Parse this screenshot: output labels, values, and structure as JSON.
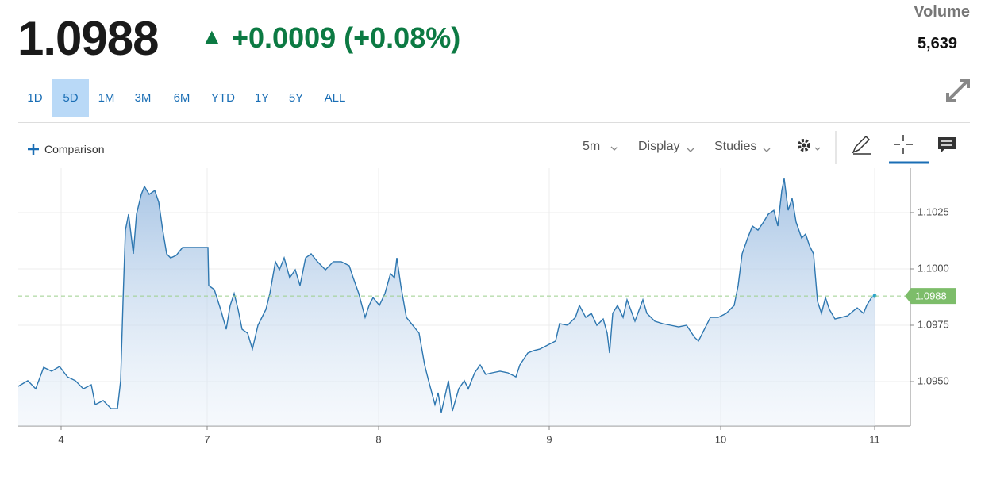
{
  "header": {
    "price": "1.0988",
    "change": "+0.0009 (+0.08%)",
    "volume_label": "Volume",
    "volume": "5,639"
  },
  "ranges": [
    "1D",
    "5D",
    "1M",
    "3M",
    "6M",
    "YTD",
    "1Y",
    "5Y",
    "ALL"
  ],
  "selected_range": "5D",
  "toolbar": {
    "comparison": "Comparison",
    "interval": "5m",
    "display": "Display",
    "studies": "Studies"
  },
  "chart_data": {
    "type": "area",
    "color": "#2e77b0",
    "grid": true,
    "last_price": 1.0988,
    "x": [
      0,
      12,
      22,
      32,
      42,
      52,
      62,
      72,
      82,
      92,
      97,
      107,
      117,
      125,
      129,
      132,
      135,
      139,
      145,
      149,
      155,
      159,
      165,
      172,
      177,
      182,
      187,
      192,
      199,
      207,
      222,
      239,
      240,
      247,
      255,
      262,
      267,
      272,
      277,
      282,
      289,
      295,
      302,
      312,
      317,
      324,
      329,
      335,
      342,
      349,
      355,
      362,
      369,
      377,
      387,
      397,
      407,
      417,
      422,
      429,
      437,
      442,
      447,
      455,
      462,
      469,
      474,
      477,
      482,
      489,
      497,
      505,
      512,
      517,
      525,
      529,
      533,
      542,
      547,
      555,
      562,
      567,
      575,
      582,
      589,
      597,
      607,
      617,
      627,
      632,
      642,
      649,
      657,
      667,
      677,
      682,
      692,
      702,
      707,
      715,
      722,
      729,
      737,
      742,
      745,
      749,
      755,
      762,
      767,
      777,
      787,
      792,
      802,
      812,
      822,
      832,
      842,
      852,
      857,
      862,
      872,
      882,
      892,
      902,
      907,
      912,
      919,
      925,
      932,
      939,
      945,
      952,
      957,
      962,
      965,
      970,
      975,
      980,
      987,
      992,
      997,
      1002,
      1007,
      1012,
      1017,
      1022,
      1029,
      1037,
      1045,
      1052,
      1057,
      1065,
      1069,
      1075,
      1079
    ],
    "values": [
      1.09479,
      1.09504,
      1.09468,
      1.09563,
      1.09546,
      1.09567,
      1.09521,
      1.09504,
      1.09468,
      1.09486,
      1.09398,
      1.09416,
      1.0938,
      1.0938,
      1.09504,
      1.09856,
      1.10172,
      1.10243,
      1.10067,
      1.10243,
      1.10331,
      1.10366,
      1.10331,
      1.10348,
      1.10296,
      1.10172,
      1.10067,
      1.10049,
      1.1006,
      1.10095,
      1.10095,
      1.10095,
      1.09926,
      1.09908,
      1.0982,
      1.09732,
      1.09838,
      1.09891,
      1.0982,
      1.09732,
      1.09715,
      1.09644,
      1.0975,
      1.0982,
      1.09891,
      1.10032,
      1.09996,
      1.10049,
      1.09961,
      1.09996,
      1.09926,
      1.10049,
      1.10067,
      1.10032,
      1.09996,
      1.10032,
      1.10032,
      1.10014,
      1.09961,
      1.09891,
      1.09785,
      1.09838,
      1.09873,
      1.09838,
      1.09891,
      1.09979,
      1.09961,
      1.10049,
      1.09926,
      1.09785,
      1.0975,
      1.09715,
      1.09574,
      1.09504,
      1.09398,
      1.09451,
      1.09363,
      1.09504,
      1.0937,
      1.09468,
      1.09504,
      1.09468,
      1.09539,
      1.09574,
      1.09532,
      1.09539,
      1.09546,
      1.09539,
      1.09521,
      1.09574,
      1.09627,
      1.09637,
      1.09644,
      1.09662,
      1.0968,
      1.09757,
      1.0975,
      1.09785,
      1.09838,
      1.09785,
      1.09803,
      1.0975,
      1.09778,
      1.09715,
      1.09627,
      1.09803,
      1.09838,
      1.09785,
      1.09863,
      1.09768,
      1.09863,
      1.09803,
      1.09768,
      1.09757,
      1.0975,
      1.09743,
      1.0975,
      1.09697,
      1.0968,
      1.09715,
      1.09785,
      1.09785,
      1.09803,
      1.09838,
      1.09926,
      1.10067,
      1.10137,
      1.1019,
      1.10172,
      1.10208,
      1.10243,
      1.1026,
      1.1019,
      1.10348,
      1.10401,
      1.1026,
      1.10313,
      1.10208,
      1.10137,
      1.10155,
      1.10102,
      1.10067,
      1.09856,
      1.09803,
      1.09873,
      1.0982,
      1.09778,
      1.09785,
      1.09792,
      1.09813,
      1.09827,
      1.09803,
      1.09838,
      1.09873,
      1.0988
    ],
    "xlim": [
      0,
      1124
    ],
    "xticks": [
      {
        "value": 54,
        "label": "4"
      },
      {
        "value": 238,
        "label": "7"
      },
      {
        "value": 454,
        "label": "8"
      },
      {
        "value": 669,
        "label": "9"
      },
      {
        "value": 885,
        "label": "10"
      },
      {
        "value": 1079,
        "label": "11"
      }
    ],
    "ylim": [
      1.09303,
      1.10447
    ],
    "yticks": [
      {
        "value": 1.095,
        "label": "1.0950"
      },
      {
        "value": 1.0975,
        "label": "1.0975"
      },
      {
        "value": 1.1,
        "label": "1.1000"
      },
      {
        "value": 1.1025,
        "label": "1.1025"
      }
    ]
  }
}
